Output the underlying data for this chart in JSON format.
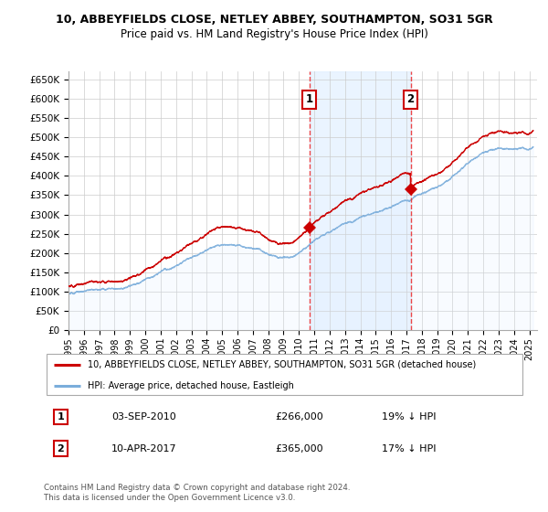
{
  "title1": "10, ABBEYFIELDS CLOSE, NETLEY ABBEY, SOUTHAMPTON, SO31 5GR",
  "title2": "Price paid vs. HM Land Registry's House Price Index (HPI)",
  "ylabel_ticks": [
    "£0",
    "£50K",
    "£100K",
    "£150K",
    "£200K",
    "£250K",
    "£300K",
    "£350K",
    "£400K",
    "£450K",
    "£500K",
    "£550K",
    "£600K",
    "£650K"
  ],
  "ytick_values": [
    0,
    50000,
    100000,
    150000,
    200000,
    250000,
    300000,
    350000,
    400000,
    450000,
    500000,
    550000,
    600000,
    650000
  ],
  "ylim": [
    0,
    670000
  ],
  "xlim_start": 1995.0,
  "xlim_end": 2025.5,
  "sale1_date": 2010.67,
  "sale1_price": 266000,
  "sale1_label": "1",
  "sale2_date": 2017.27,
  "sale2_price": 365000,
  "sale2_label": "2",
  "legend_property": "10, ABBEYFIELDS CLOSE, NETLEY ABBEY, SOUTHAMPTON, SO31 5GR (detached house)",
  "legend_hpi": "HPI: Average price, detached house, Eastleigh",
  "annotation1": "03-SEP-2010",
  "annotation1_price": "£266,000",
  "annotation1_pct": "19% ↓ HPI",
  "annotation2": "10-APR-2017",
  "annotation2_price": "£365,000",
  "annotation2_pct": "17% ↓ HPI",
  "footer": "Contains HM Land Registry data © Crown copyright and database right 2024.\nThis data is licensed under the Open Government Licence v3.0.",
  "color_property": "#cc0000",
  "color_hpi": "#7aaddb",
  "color_hpi_fill": "#ddeeff",
  "color_grid": "#cccccc",
  "color_vline": "#ee3333",
  "background_plot": "#ffffff",
  "shaded_region_color": "#ddeeff",
  "xtick_years": [
    1995,
    1996,
    1997,
    1998,
    1999,
    2000,
    2001,
    2002,
    2003,
    2004,
    2005,
    2006,
    2007,
    2008,
    2009,
    2010,
    2011,
    2012,
    2013,
    2014,
    2015,
    2016,
    2017,
    2018,
    2019,
    2020,
    2021,
    2022,
    2023,
    2024,
    2025
  ]
}
